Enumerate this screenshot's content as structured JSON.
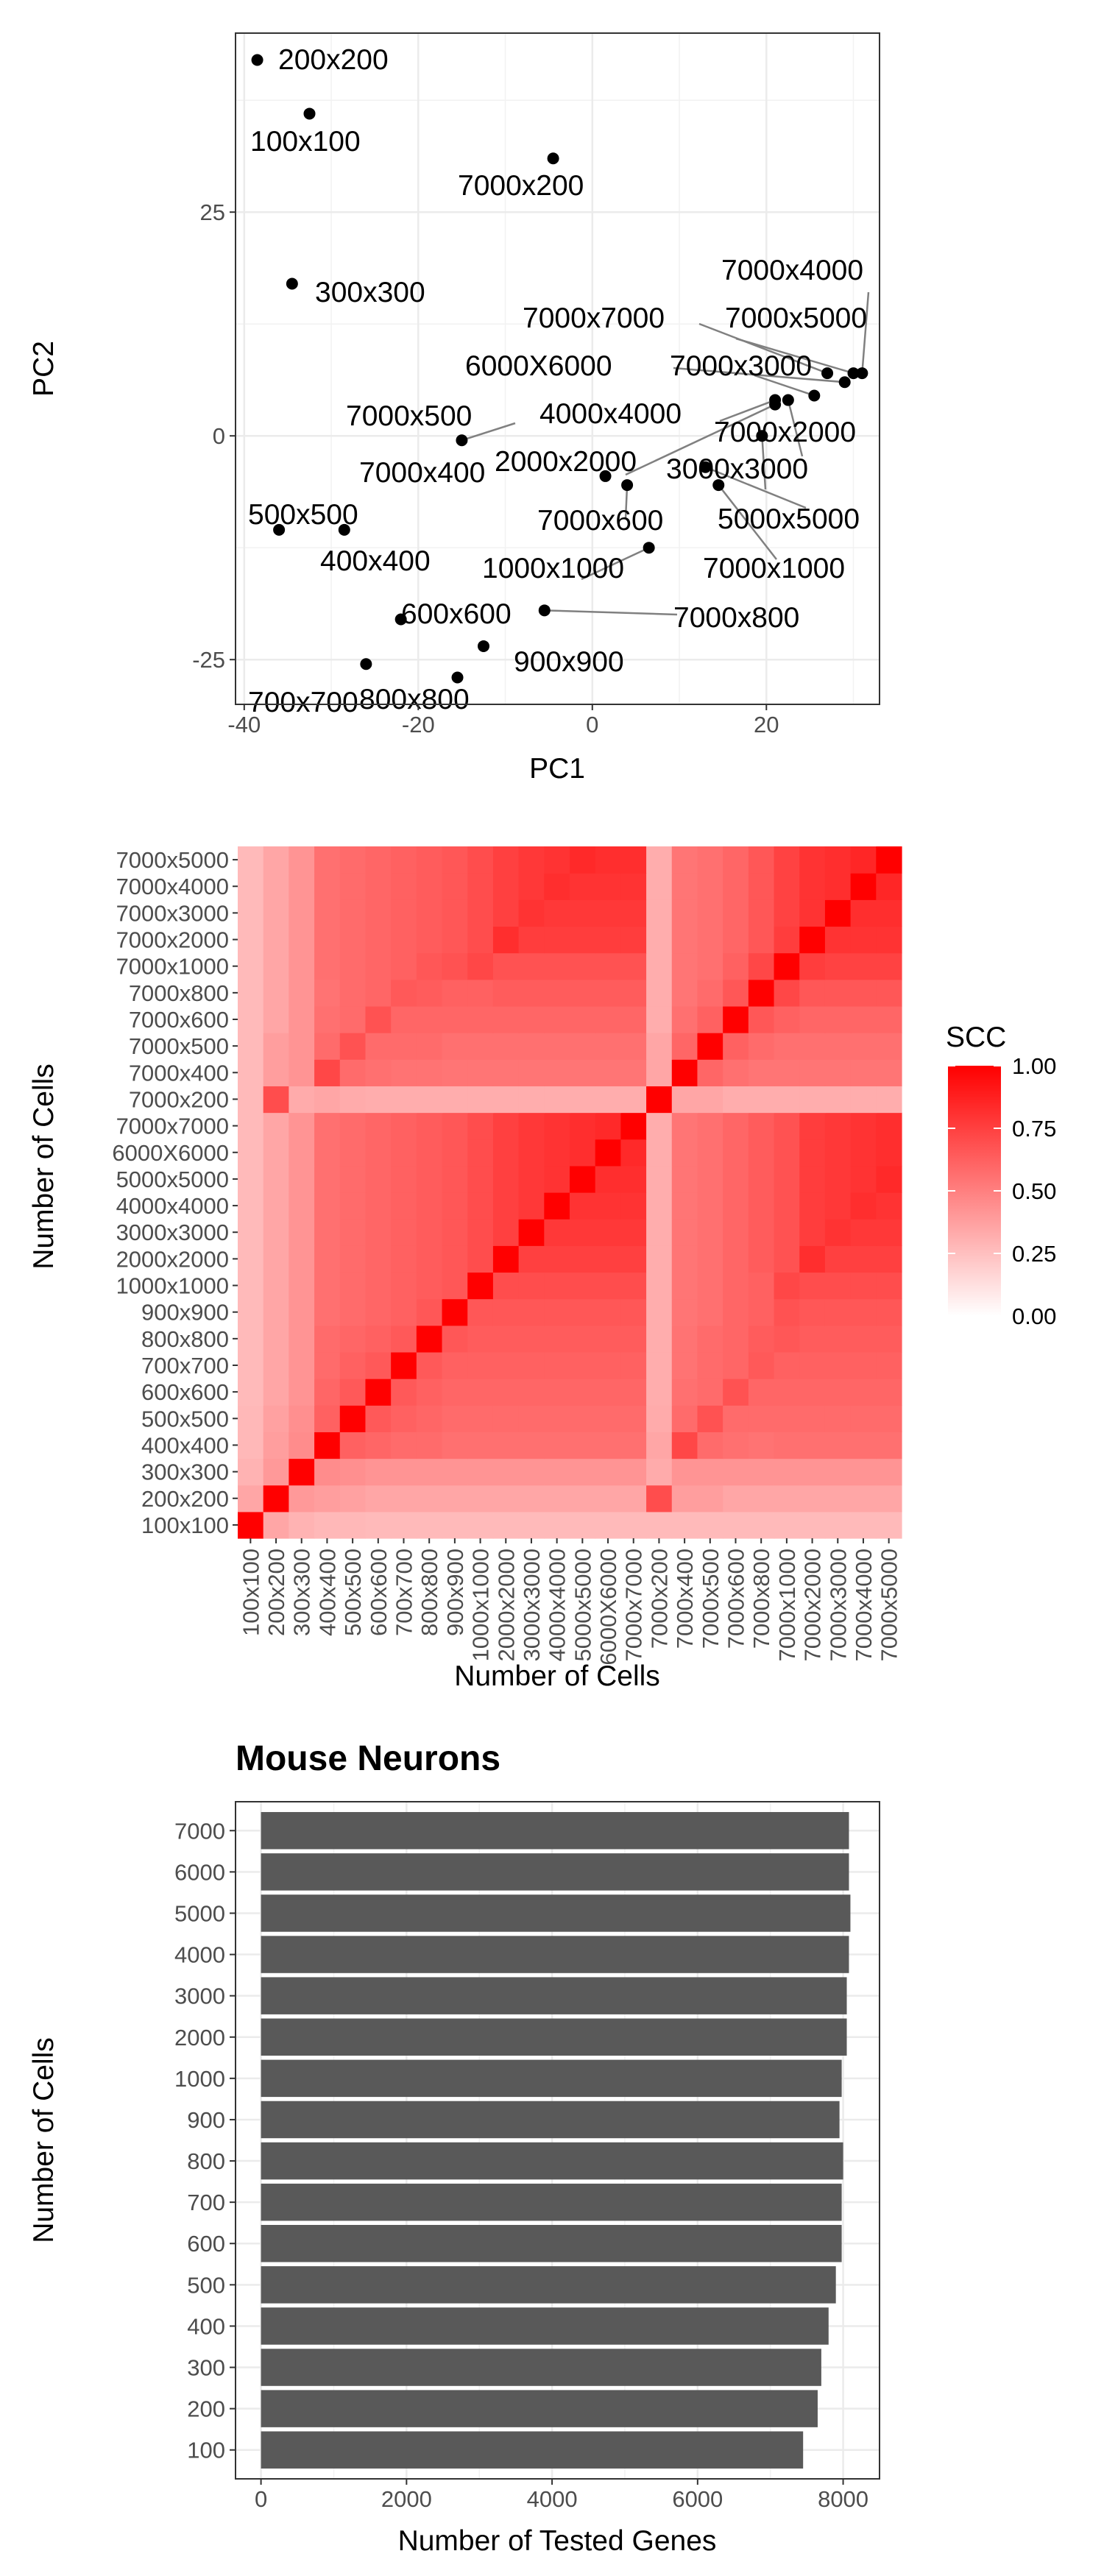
{
  "chart_data": [
    {
      "type": "scatter",
      "xlabel": "PC1",
      "ylabel": "PC2",
      "xlim": [
        -41,
        33
      ],
      "ylim": [
        -30,
        45
      ],
      "x_ticks": [
        -40,
        -20,
        0,
        20
      ],
      "y_ticks": [
        -25,
        0,
        25
      ],
      "grid": true,
      "points": [
        {
          "label": "200x200",
          "x": -38.5,
          "y": 42
        },
        {
          "label": "100x100",
          "x": -32.5,
          "y": 36
        },
        {
          "label": "7000x200",
          "x": -4.5,
          "y": 31
        },
        {
          "label": "300x300",
          "x": -34.5,
          "y": 17
        },
        {
          "label": "7000x4000",
          "x": 31,
          "y": 7
        },
        {
          "label": "7000x7000",
          "x": 27,
          "y": 7
        },
        {
          "label": "7000x5000",
          "x": 30,
          "y": 7
        },
        {
          "label": "6000X6000",
          "x": 29,
          "y": 6
        },
        {
          "label": "7000x3000",
          "x": 25.5,
          "y": 4.5
        },
        {
          "label": "4000x4000",
          "x": 21,
          "y": 4
        },
        {
          "label": "7000x2000",
          "x": 22.5,
          "y": 4
        },
        {
          "label": "7000x500",
          "x": -15,
          "y": -0.5
        },
        {
          "label": "7000x400",
          "x": 1.5,
          "y": -4.5
        },
        {
          "label": "2000x2000",
          "x": 21,
          "y": 3.5
        },
        {
          "label": "3000x3000",
          "x": 19.5,
          "y": 0
        },
        {
          "label": "7000x600",
          "x": 4,
          "y": -5.5
        },
        {
          "label": "5000x5000",
          "x": 13,
          "y": -3.5
        },
        {
          "label": "7000x1000",
          "x": 14.5,
          "y": -5.5
        },
        {
          "label": "500x500",
          "x": -36,
          "y": -10.5
        },
        {
          "label": "400x400",
          "x": -28.5,
          "y": -10.5
        },
        {
          "label": "1000x1000",
          "x": 6.5,
          "y": -12.5
        },
        {
          "label": "7000x800",
          "x": -5.5,
          "y": -19.5
        },
        {
          "label": "600x600",
          "x": -22,
          "y": -20.5
        },
        {
          "label": "900x900",
          "x": -12.5,
          "y": -23.5
        },
        {
          "label": "700x700",
          "x": -26,
          "y": -25.5
        },
        {
          "label": "800x800",
          "x": -15.5,
          "y": -27
        }
      ]
    },
    {
      "type": "heatmap",
      "xlabel": "Number of Cells",
      "ylabel": "Number of Cells",
      "categories": [
        "100x100",
        "200x200",
        "300x300",
        "400x400",
        "500x500",
        "600x600",
        "700x700",
        "800x800",
        "900x900",
        "1000x1000",
        "2000x2000",
        "3000x3000",
        "4000x4000",
        "5000x5000",
        "6000X6000",
        "7000x7000",
        "7000x200",
        "7000x400",
        "7000x500",
        "7000x600",
        "7000x800",
        "7000x1000",
        "7000x2000",
        "7000x3000",
        "7000x4000",
        "7000x5000"
      ],
      "legend": {
        "title": "SCC",
        "ticks": [
          "1.00",
          "0.75",
          "0.50",
          "0.25",
          "0.00"
        ],
        "range": [
          0,
          1
        ],
        "low_color": "#ffffff",
        "high_color": "#ff0000"
      },
      "values": [
        [
          1.0,
          0.35,
          0.3,
          0.28,
          0.28,
          0.27,
          0.27,
          0.27,
          0.27,
          0.27,
          0.27,
          0.27,
          0.27,
          0.27,
          0.27,
          0.27,
          0.27,
          0.27,
          0.27,
          0.27,
          0.27,
          0.27,
          0.27,
          0.27,
          0.27,
          0.27
        ],
        [
          0.35,
          1.0,
          0.4,
          0.38,
          0.37,
          0.35,
          0.35,
          0.35,
          0.35,
          0.35,
          0.35,
          0.35,
          0.35,
          0.35,
          0.35,
          0.35,
          0.7,
          0.38,
          0.38,
          0.35,
          0.35,
          0.35,
          0.35,
          0.35,
          0.35,
          0.35
        ],
        [
          0.3,
          0.4,
          1.0,
          0.45,
          0.44,
          0.42,
          0.42,
          0.42,
          0.42,
          0.42,
          0.42,
          0.42,
          0.42,
          0.42,
          0.42,
          0.42,
          0.33,
          0.42,
          0.42,
          0.42,
          0.42,
          0.42,
          0.42,
          0.42,
          0.42,
          0.42
        ],
        [
          0.28,
          0.38,
          0.45,
          1.0,
          0.62,
          0.6,
          0.58,
          0.58,
          0.56,
          0.56,
          0.56,
          0.56,
          0.56,
          0.56,
          0.56,
          0.56,
          0.35,
          0.72,
          0.58,
          0.56,
          0.55,
          0.56,
          0.56,
          0.56,
          0.56,
          0.56
        ],
        [
          0.28,
          0.37,
          0.44,
          0.62,
          1.0,
          0.65,
          0.62,
          0.6,
          0.58,
          0.58,
          0.58,
          0.58,
          0.58,
          0.58,
          0.58,
          0.58,
          0.33,
          0.58,
          0.68,
          0.58,
          0.58,
          0.58,
          0.58,
          0.58,
          0.58,
          0.58
        ],
        [
          0.27,
          0.35,
          0.42,
          0.6,
          0.65,
          1.0,
          0.65,
          0.62,
          0.6,
          0.6,
          0.6,
          0.6,
          0.6,
          0.6,
          0.6,
          0.6,
          0.32,
          0.56,
          0.58,
          0.68,
          0.6,
          0.6,
          0.6,
          0.6,
          0.6,
          0.6
        ],
        [
          0.27,
          0.35,
          0.42,
          0.58,
          0.62,
          0.65,
          1.0,
          0.65,
          0.62,
          0.62,
          0.62,
          0.62,
          0.62,
          0.62,
          0.62,
          0.62,
          0.32,
          0.55,
          0.58,
          0.6,
          0.65,
          0.62,
          0.62,
          0.62,
          0.62,
          0.62
        ],
        [
          0.27,
          0.35,
          0.42,
          0.58,
          0.6,
          0.62,
          0.65,
          1.0,
          0.66,
          0.64,
          0.64,
          0.64,
          0.64,
          0.64,
          0.64,
          0.64,
          0.32,
          0.55,
          0.58,
          0.6,
          0.64,
          0.66,
          0.64,
          0.64,
          0.64,
          0.64
        ],
        [
          0.27,
          0.35,
          0.42,
          0.56,
          0.58,
          0.6,
          0.62,
          0.66,
          1.0,
          0.66,
          0.66,
          0.66,
          0.66,
          0.66,
          0.66,
          0.66,
          0.32,
          0.54,
          0.56,
          0.6,
          0.62,
          0.68,
          0.66,
          0.66,
          0.66,
          0.66
        ],
        [
          0.27,
          0.35,
          0.42,
          0.56,
          0.58,
          0.6,
          0.62,
          0.64,
          0.66,
          1.0,
          0.7,
          0.7,
          0.7,
          0.7,
          0.7,
          0.7,
          0.32,
          0.54,
          0.56,
          0.6,
          0.62,
          0.72,
          0.7,
          0.7,
          0.7,
          0.7
        ],
        [
          0.27,
          0.35,
          0.42,
          0.56,
          0.58,
          0.6,
          0.62,
          0.64,
          0.66,
          0.7,
          1.0,
          0.75,
          0.75,
          0.75,
          0.75,
          0.75,
          0.32,
          0.54,
          0.56,
          0.6,
          0.64,
          0.68,
          0.82,
          0.75,
          0.75,
          0.75
        ],
        [
          0.27,
          0.35,
          0.42,
          0.56,
          0.58,
          0.6,
          0.62,
          0.64,
          0.66,
          0.7,
          0.75,
          1.0,
          0.78,
          0.78,
          0.78,
          0.78,
          0.32,
          0.54,
          0.56,
          0.6,
          0.64,
          0.68,
          0.76,
          0.8,
          0.78,
          0.78
        ],
        [
          0.27,
          0.35,
          0.42,
          0.56,
          0.58,
          0.6,
          0.62,
          0.64,
          0.66,
          0.7,
          0.75,
          0.78,
          1.0,
          0.8,
          0.8,
          0.8,
          0.32,
          0.54,
          0.56,
          0.6,
          0.64,
          0.68,
          0.76,
          0.78,
          0.82,
          0.8
        ],
        [
          0.27,
          0.35,
          0.42,
          0.56,
          0.58,
          0.6,
          0.62,
          0.64,
          0.66,
          0.7,
          0.75,
          0.78,
          0.8,
          1.0,
          0.82,
          0.82,
          0.32,
          0.54,
          0.56,
          0.6,
          0.64,
          0.68,
          0.76,
          0.78,
          0.8,
          0.84
        ],
        [
          0.27,
          0.35,
          0.42,
          0.56,
          0.58,
          0.6,
          0.62,
          0.64,
          0.66,
          0.7,
          0.75,
          0.78,
          0.8,
          0.82,
          1.0,
          0.84,
          0.32,
          0.54,
          0.56,
          0.6,
          0.64,
          0.68,
          0.76,
          0.78,
          0.8,
          0.82
        ],
        [
          0.27,
          0.35,
          0.42,
          0.56,
          0.58,
          0.6,
          0.62,
          0.64,
          0.66,
          0.7,
          0.75,
          0.78,
          0.8,
          0.82,
          0.84,
          1.0,
          0.32,
          0.54,
          0.56,
          0.6,
          0.64,
          0.68,
          0.76,
          0.78,
          0.8,
          0.82
        ],
        [
          0.27,
          0.7,
          0.33,
          0.35,
          0.33,
          0.32,
          0.32,
          0.32,
          0.32,
          0.32,
          0.32,
          0.32,
          0.32,
          0.32,
          0.32,
          0.32,
          1.0,
          0.35,
          0.35,
          0.32,
          0.32,
          0.32,
          0.32,
          0.32,
          0.32,
          0.32
        ],
        [
          0.27,
          0.38,
          0.42,
          0.72,
          0.58,
          0.56,
          0.55,
          0.55,
          0.54,
          0.54,
          0.54,
          0.54,
          0.54,
          0.54,
          0.54,
          0.54,
          0.35,
          1.0,
          0.6,
          0.56,
          0.54,
          0.54,
          0.54,
          0.54,
          0.54,
          0.54
        ],
        [
          0.27,
          0.38,
          0.42,
          0.58,
          0.68,
          0.58,
          0.58,
          0.58,
          0.56,
          0.56,
          0.56,
          0.56,
          0.56,
          0.56,
          0.56,
          0.56,
          0.35,
          0.6,
          1.0,
          0.62,
          0.58,
          0.56,
          0.56,
          0.56,
          0.56,
          0.56
        ],
        [
          0.27,
          0.35,
          0.42,
          0.56,
          0.58,
          0.68,
          0.6,
          0.6,
          0.6,
          0.6,
          0.6,
          0.6,
          0.6,
          0.6,
          0.6,
          0.6,
          0.32,
          0.56,
          0.62,
          1.0,
          0.66,
          0.62,
          0.6,
          0.6,
          0.6,
          0.6
        ],
        [
          0.27,
          0.35,
          0.42,
          0.55,
          0.58,
          0.6,
          0.65,
          0.64,
          0.62,
          0.62,
          0.64,
          0.64,
          0.64,
          0.64,
          0.64,
          0.64,
          0.32,
          0.54,
          0.58,
          0.66,
          1.0,
          0.72,
          0.66,
          0.66,
          0.66,
          0.66
        ],
        [
          0.27,
          0.35,
          0.42,
          0.56,
          0.58,
          0.6,
          0.62,
          0.66,
          0.68,
          0.72,
          0.68,
          0.68,
          0.68,
          0.68,
          0.68,
          0.68,
          0.32,
          0.54,
          0.56,
          0.62,
          0.72,
          1.0,
          0.76,
          0.74,
          0.74,
          0.74
        ],
        [
          0.27,
          0.35,
          0.42,
          0.56,
          0.58,
          0.6,
          0.62,
          0.64,
          0.66,
          0.7,
          0.82,
          0.76,
          0.76,
          0.76,
          0.76,
          0.76,
          0.32,
          0.54,
          0.56,
          0.6,
          0.66,
          0.76,
          1.0,
          0.8,
          0.8,
          0.8
        ],
        [
          0.27,
          0.35,
          0.42,
          0.56,
          0.58,
          0.6,
          0.62,
          0.64,
          0.66,
          0.7,
          0.75,
          0.8,
          0.78,
          0.78,
          0.78,
          0.78,
          0.32,
          0.54,
          0.56,
          0.6,
          0.66,
          0.74,
          0.8,
          1.0,
          0.82,
          0.82
        ],
        [
          0.27,
          0.35,
          0.42,
          0.56,
          0.58,
          0.6,
          0.62,
          0.64,
          0.66,
          0.7,
          0.75,
          0.78,
          0.82,
          0.8,
          0.8,
          0.8,
          0.32,
          0.54,
          0.56,
          0.6,
          0.66,
          0.74,
          0.8,
          0.82,
          1.0,
          0.85
        ],
        [
          0.27,
          0.35,
          0.42,
          0.56,
          0.58,
          0.6,
          0.62,
          0.64,
          0.66,
          0.7,
          0.75,
          0.78,
          0.8,
          0.84,
          0.82,
          0.82,
          0.32,
          0.54,
          0.56,
          0.6,
          0.66,
          0.74,
          0.8,
          0.82,
          0.85,
          1.0
        ]
      ]
    },
    {
      "type": "bar",
      "orientation": "horizontal",
      "title": "Mouse Neurons",
      "xlabel": "Number of Tested Genes",
      "ylabel": "Number of Cells",
      "categories": [
        "100",
        "200",
        "300",
        "400",
        "500",
        "600",
        "700",
        "800",
        "900",
        "1000",
        "2000",
        "3000",
        "4000",
        "5000",
        "6000",
        "7000"
      ],
      "values": [
        7450,
        7650,
        7700,
        7800,
        7900,
        7980,
        7980,
        8000,
        7950,
        7980,
        8050,
        8050,
        8080,
        8100,
        8080,
        8080
      ],
      "xlim": [
        -350,
        8500
      ],
      "x_ticks": [
        0,
        2000,
        4000,
        6000,
        8000
      ],
      "bar_color": "#595959",
      "grid": true
    }
  ]
}
